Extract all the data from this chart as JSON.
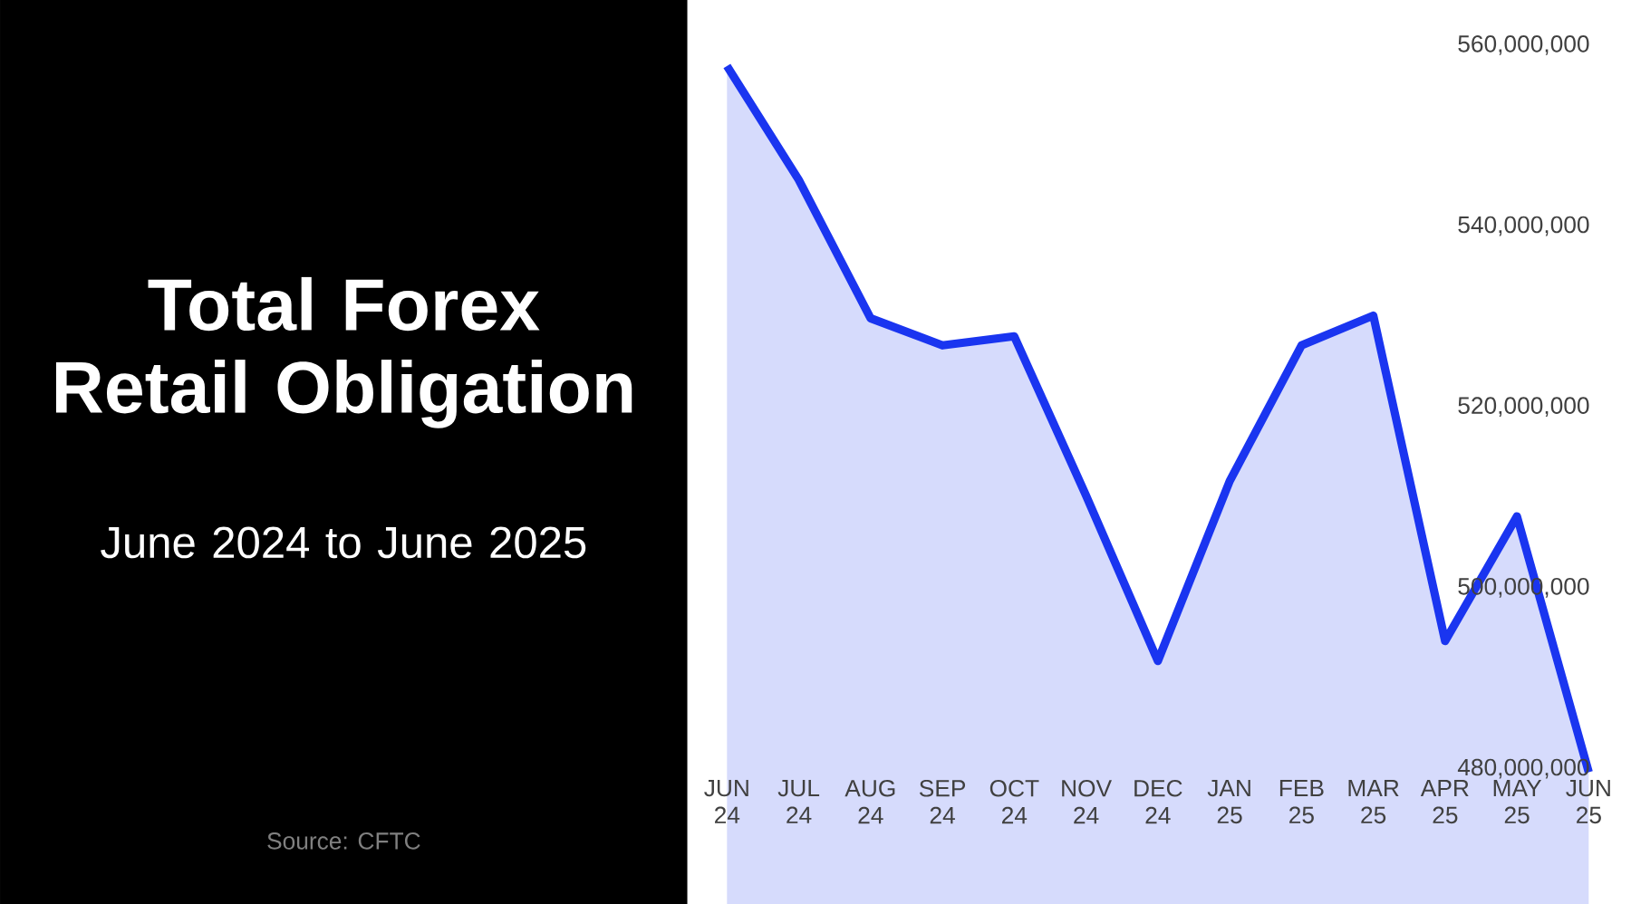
{
  "chart_data": {
    "type": "area",
    "title": "Total Forex Retail Obligation",
    "subtitle": "June 2024 to June 2025",
    "annotations": [
      "Source: CFTC"
    ],
    "categories": [
      "JUN 24",
      "JUL 24",
      "AUG 24",
      "SEP 24",
      "OCT 24",
      "NOV 24",
      "DEC 24",
      "JAN 25",
      "FEB 25",
      "MAR 25",
      "APR 25",
      "MAY 25",
      "JUN 25"
    ],
    "values": [
      557700000,
      545100000,
      529800000,
      526800000,
      527800000,
      510200000,
      491900000,
      511800000,
      526800000,
      530100000,
      494100000,
      507900000,
      479600000
    ],
    "color": "#1a35f0",
    "ylim": [
      465000000,
      565000000
    ],
    "yticks": [
      {
        "value": 480000000,
        "label": "480,000,000"
      },
      {
        "value": 500000000,
        "label": "500,000,000"
      },
      {
        "value": 520000000,
        "label": "520,000,000"
      },
      {
        "value": 540000000,
        "label": "540,000,000"
      },
      {
        "value": 560000000,
        "label": "560,000,000"
      }
    ],
    "grid": false
  }
}
